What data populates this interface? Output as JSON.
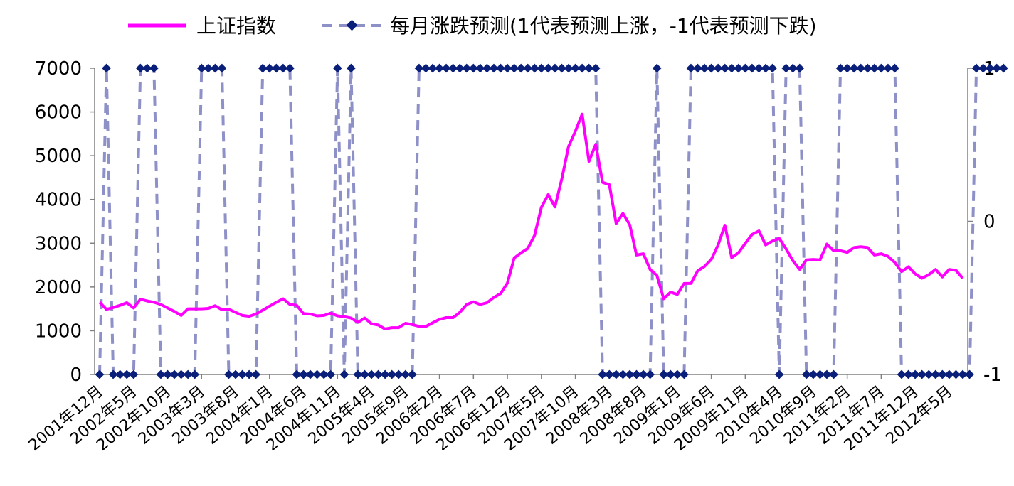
{
  "chart_data": {
    "type": "line",
    "legend_position": "top",
    "grid": false,
    "colors": {
      "index_line": "#ff00ff",
      "prediction_line": "#8e90c8",
      "prediction_marker": "#0a1f7a",
      "axis": "#808080"
    },
    "y_left": {
      "ticks": [
        "0",
        "1000",
        "2000",
        "3000",
        "4000",
        "5000",
        "6000",
        "7000"
      ],
      "range": [
        0,
        7000
      ]
    },
    "y_right": {
      "ticks": [
        "-1",
        "0",
        "1"
      ],
      "range": [
        -1,
        1
      ]
    },
    "x_tick_labels": [
      "2001年12月",
      "2002年5月",
      "2002年10月",
      "2003年3月",
      "2003年8月",
      "2004年1月",
      "2004年6月",
      "2004年11月",
      "2005年4月",
      "2005年9月",
      "2006年2月",
      "2006年7月",
      "2006年12月",
      "2007年5月",
      "2007年10月",
      "2008年3月",
      "2008年8月",
      "2009年1月",
      "2009年6月",
      "2009年11月",
      "2010年4月",
      "2010年9月",
      "2011年2月",
      "2011年7月",
      "2011年12月",
      "2012年5月"
    ],
    "series": [
      {
        "name": "上证指数",
        "axis": "left",
        "values": [
          1650,
          1490,
          1530,
          1580,
          1640,
          1520,
          1720,
          1680,
          1650,
          1600,
          1520,
          1440,
          1350,
          1500,
          1500,
          1500,
          1510,
          1570,
          1480,
          1490,
          1420,
          1350,
          1330,
          1380,
          1470,
          1560,
          1650,
          1730,
          1600,
          1580,
          1390,
          1380,
          1340,
          1350,
          1400,
          1340,
          1320,
          1290,
          1190,
          1290,
          1160,
          1130,
          1040,
          1070,
          1070,
          1170,
          1140,
          1100,
          1100,
          1180,
          1260,
          1300,
          1300,
          1420,
          1600,
          1660,
          1600,
          1640,
          1760,
          1850,
          2090,
          2660,
          2780,
          2880,
          3180,
          3820,
          4110,
          3830,
          4470,
          5210,
          5560,
          5950,
          4870,
          5260,
          4390,
          4340,
          3450,
          3680,
          3420,
          2730,
          2760,
          2400,
          2260,
          1730,
          1880,
          1830,
          2080,
          2080,
          2370,
          2470,
          2630,
          2960,
          3410,
          2670,
          2780,
          3000,
          3200,
          3280,
          2960,
          3050,
          3110,
          2870,
          2600,
          2400,
          2620,
          2630,
          2620,
          2980,
          2830,
          2830,
          2790,
          2900,
          2920,
          2900,
          2730,
          2760,
          2700,
          2560,
          2350,
          2460,
          2300,
          2200,
          2280,
          2400,
          2230,
          2400,
          2380,
          2200
        ]
      },
      {
        "name": "每月涨跌预测(1代表预测上涨，-1代表预测下跌)",
        "axis": "right",
        "values": [
          -1,
          1,
          -1,
          -1,
          -1,
          -1,
          1,
          1,
          1,
          -1,
          -1,
          -1,
          -1,
          -1,
          -1,
          1,
          1,
          1,
          1,
          -1,
          -1,
          -1,
          -1,
          -1,
          1,
          1,
          1,
          1,
          1,
          -1,
          -1,
          -1,
          -1,
          -1,
          -1,
          1,
          -1,
          1,
          -1,
          -1,
          -1,
          -1,
          -1,
          -1,
          -1,
          -1,
          -1,
          1,
          1,
          1,
          1,
          1,
          1,
          1,
          1,
          1,
          1,
          1,
          1,
          1,
          1,
          1,
          1,
          1,
          1,
          1,
          1,
          1,
          1,
          1,
          1,
          1,
          1,
          1,
          -1,
          -1,
          -1,
          -1,
          -1,
          -1,
          -1,
          -1,
          1,
          -1,
          -1,
          -1,
          -1,
          1,
          1,
          1,
          1,
          1,
          1,
          1,
          1,
          1,
          1,
          1,
          1,
          1,
          -1,
          1,
          1,
          1,
          -1,
          -1,
          -1,
          -1,
          -1,
          1,
          1,
          1,
          1,
          1,
          1,
          1,
          1,
          1,
          -1,
          -1,
          -1,
          -1,
          -1,
          -1,
          -1,
          -1,
          -1,
          -1,
          -1,
          1,
          1,
          1,
          1,
          1
        ]
      }
    ]
  }
}
